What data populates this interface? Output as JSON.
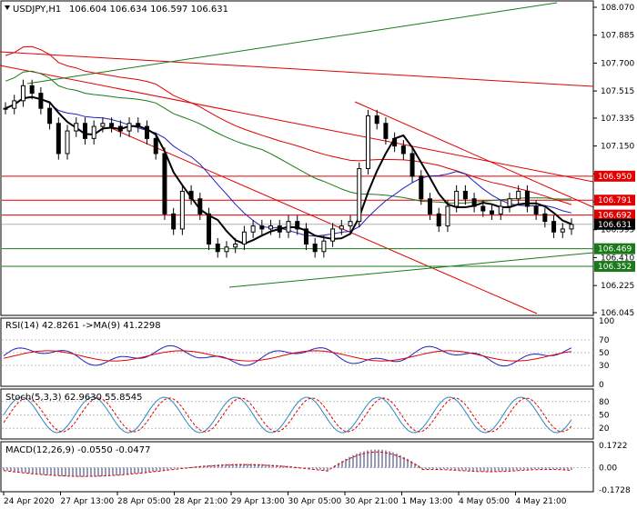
{
  "chart_data": {
    "type": "candlestick",
    "symbol": "USDJPY,H1",
    "ohlc": "106.604 106.634 106.597 106.631",
    "price_min": 106.045,
    "price_max": 108.07,
    "price_ticks": [
      "108.070",
      "107.885",
      "107.700",
      "107.515",
      "107.335",
      "107.150",
      "106.965",
      "106.780",
      "106.595",
      "106.410",
      "106.225",
      "106.045"
    ],
    "level_labels": [
      {
        "value": 106.95,
        "text": "106.950",
        "color": "#e00000"
      },
      {
        "value": 106.791,
        "text": "106.791",
        "color": "#e00000"
      },
      {
        "value": 106.692,
        "text": "106.692",
        "color": "#e00000"
      },
      {
        "value": 106.631,
        "text": "106.631",
        "color": "#000000"
      },
      {
        "value": 106.469,
        "text": "106.469",
        "color": "#1a7a1a"
      },
      {
        "value": 106.352,
        "text": "106.352",
        "color": "#1a7a1a"
      }
    ],
    "time_labels": [
      "24 Apr 2020",
      "27 Apr 13:00",
      "28 Apr 05:00",
      "28 Apr 21:00",
      "29 Apr 13:00",
      "30 Apr 05:00",
      "30 Apr 21:00",
      "1 May 13:00",
      "4 May 05:00",
      "4 May 21:00"
    ],
    "candles_approx_closes": [
      107.4,
      107.45,
      107.55,
      107.5,
      107.4,
      107.3,
      107.1,
      107.25,
      107.3,
      107.2,
      107.28,
      107.3,
      107.28,
      107.25,
      107.3,
      107.28,
      107.2,
      107.1,
      106.7,
      106.6,
      106.85,
      106.8,
      106.7,
      106.5,
      106.45,
      106.48,
      106.5,
      106.58,
      106.62,
      106.6,
      106.62,
      106.58,
      106.65,
      106.6,
      106.5,
      106.45,
      106.52,
      106.6,
      106.62,
      106.65,
      107.0,
      107.35,
      107.3,
      107.2,
      107.15,
      107.1,
      106.95,
      106.8,
      106.7,
      106.62,
      106.75,
      106.85,
      106.8,
      106.75,
      106.72,
      106.7,
      106.75,
      106.8,
      106.85,
      106.75,
      106.7,
      106.65,
      106.58,
      106.6,
      106.63
    ]
  },
  "rsi": {
    "label": "RSI(14) 42.8261 ->MA(9) 41.2298",
    "levels": [
      "100",
      "70",
      "50",
      "30",
      "0"
    ]
  },
  "stoch": {
    "label": "Stoch(5,3,3) 62.9630 55.8545",
    "levels": [
      "80",
      "50",
      "20"
    ]
  },
  "macd": {
    "label": "MACD(12,26,9) -0.0550 -0.0477",
    "levels": [
      "0.1722",
      "0.00",
      "-0.1728"
    ]
  },
  "colors": {
    "red": "#e00000",
    "green": "#1a7a1a",
    "blue": "#2020c0",
    "black": "#000000"
  }
}
